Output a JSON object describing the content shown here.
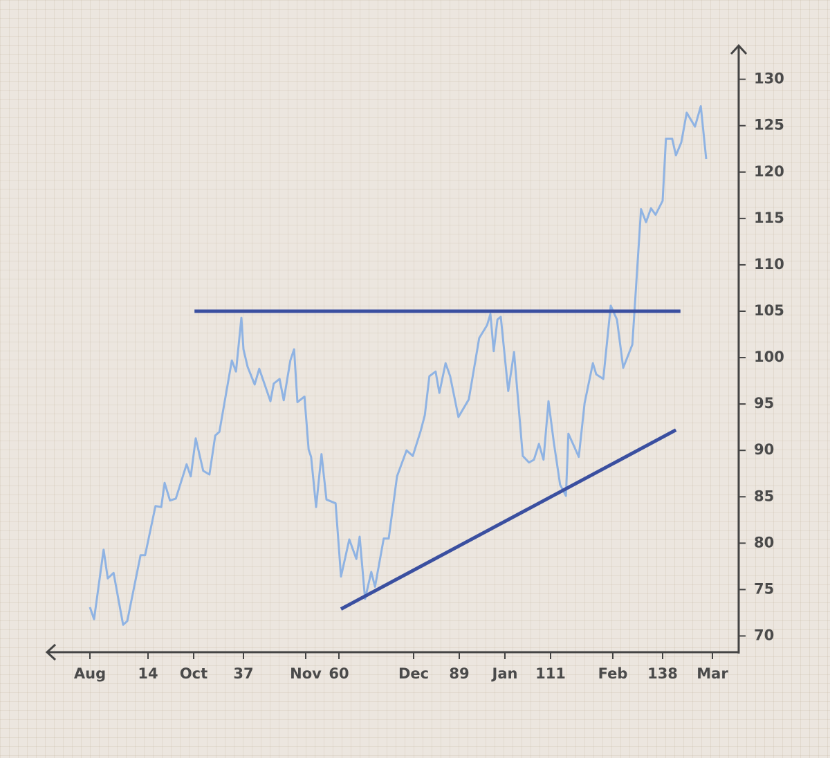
{
  "chart_data": {
    "type": "line",
    "xlim": [
      -10,
      152
    ],
    "xticks": [
      {
        "value": 0,
        "label": "Aug"
      },
      14,
      {
        "value": 25,
        "label": "Oct"
      },
      37,
      {
        "value": 52,
        "label": "Nov"
      },
      60,
      {
        "value": 78,
        "label": "Dec"
      },
      89,
      {
        "value": 100,
        "label": "Jan"
      },
      111,
      {
        "value": 126,
        "label": "Feb"
      },
      138,
      {
        "value": 150,
        "label": "Mar"
      }
    ],
    "ylim": [
      68.1,
      133.7
    ],
    "yticks": [
      70,
      75,
      80,
      85,
      90,
      95,
      100,
      105,
      110,
      115,
      120,
      125,
      130
    ],
    "series": [
      {
        "color": "#8fb3e3",
        "x": [
          0,
          1,
          3.3,
          4.3,
          5.7,
          8,
          9,
          12.2,
          13.3,
          15.8,
          17.2,
          18,
          19.3,
          20.7,
          23.3,
          24.3,
          25.5,
          27.3,
          28.8,
          30.2,
          31.2,
          34.2,
          35.2,
          36.5,
          37,
          38,
          39.7,
          40.8,
          43.5,
          44.3,
          45.7,
          46.7,
          48.3,
          49.2,
          50,
          51.7,
          52.7,
          53.3,
          54.5,
          55.8,
          57,
          59.2,
          60.5,
          62.5,
          64.2,
          65,
          66.3,
          67.8,
          68.7,
          70.8,
          72,
          74,
          76.3,
          77.8,
          79.7,
          80.7,
          81.8,
          83.3,
          84.2,
          85.7,
          86.8,
          88.8,
          91.3,
          93.8,
          95.7,
          96.5,
          97.3,
          98.2,
          99,
          100.8,
          102.2,
          104.3,
          105.8,
          107,
          108.2,
          109.3,
          110.5,
          111.8,
          113.3,
          114.7,
          115.3,
          116.5,
          117.8,
          119.2,
          121.2,
          122,
          123.7,
          125.5,
          127,
          128.5,
          130.7,
          132.8,
          134,
          135.2,
          136.3,
          138,
          138.8,
          140.3,
          141.2,
          142.5,
          143.8,
          145.8,
          147.2,
          148.5
        ],
        "values": [
          73.1,
          71.8,
          79.3,
          76.2,
          76.8,
          71.2,
          71.6,
          78.7,
          78.7,
          84.0,
          83.9,
          86.5,
          84.6,
          84.8,
          88.5,
          87.2,
          91.3,
          87.8,
          87.4,
          91.6,
          92.0,
          99.7,
          98.5,
          104.3,
          100.9,
          99.0,
          97.1,
          98.8,
          95.3,
          97.2,
          97.7,
          95.4,
          99.7,
          100.9,
          95.2,
          95.8,
          90.1,
          89.3,
          83.9,
          89.6,
          84.7,
          84.3,
          76.4,
          80.4,
          78.3,
          80.7,
          74.0,
          76.9,
          75.3,
          80.5,
          80.5,
          87.2,
          90.0,
          89.4,
          92.1,
          93.8,
          98.0,
          98.5,
          96.2,
          99.4,
          98.0,
          93.6,
          95.5,
          102.1,
          103.5,
          104.7,
          100.7,
          104.1,
          104.4,
          96.4,
          100.6,
          89.4,
          88.7,
          89.0,
          90.7,
          89.0,
          95.3,
          90.8,
          86.3,
          85.1,
          91.8,
          90.6,
          89.3,
          95.1,
          99.4,
          98.2,
          97.7,
          105.6,
          104.1,
          98.9,
          101.4,
          116.0,
          114.6,
          116.1,
          115.4,
          116.9,
          123.6,
          123.6,
          121.8,
          123.2,
          126.4,
          124.9,
          127.1,
          121.4
        ]
      },
      {
        "color": "#3a4fa0",
        "x": [
          25.2,
          142.3
        ],
        "values": [
          105,
          105
        ]
      },
      {
        "color": "#3a4fa0",
        "x": [
          60.5,
          141.2
        ],
        "values": [
          72.9,
          92.2
        ]
      }
    ]
  }
}
